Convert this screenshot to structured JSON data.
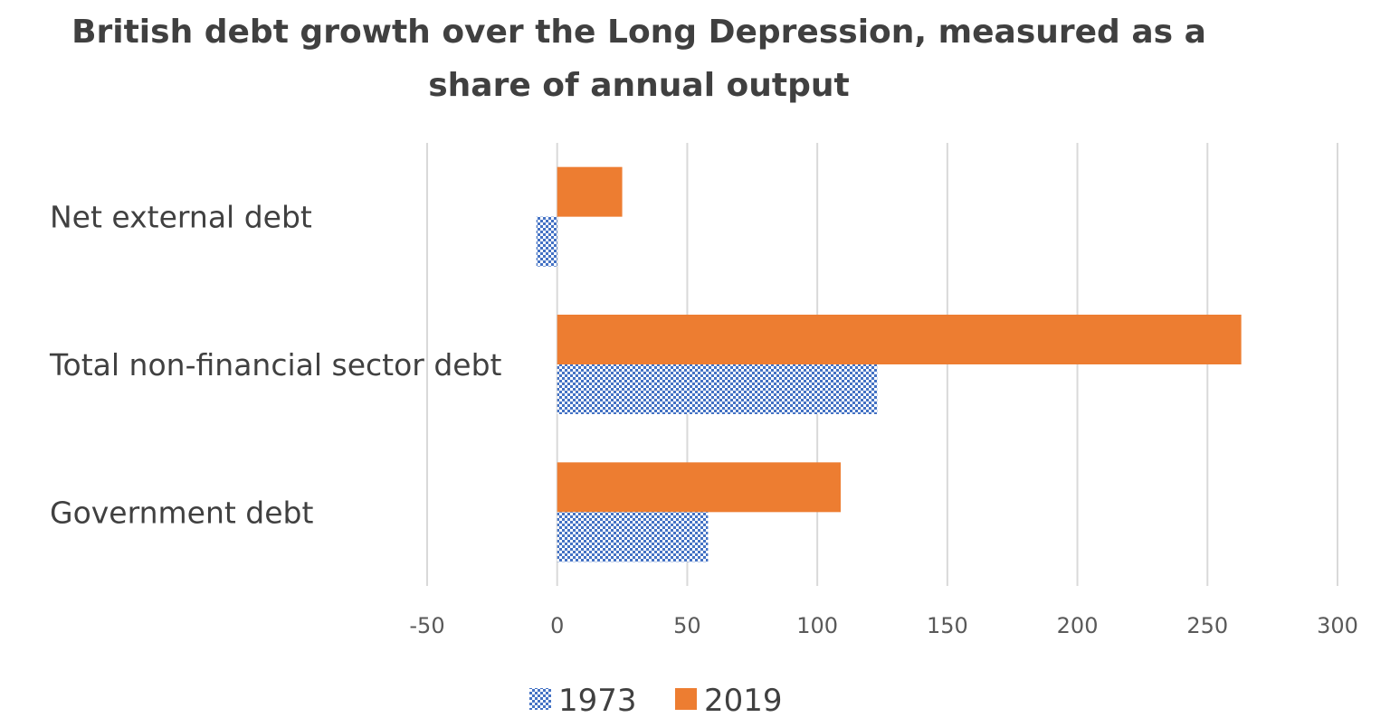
{
  "chart_data": {
    "type": "bar",
    "orientation": "horizontal",
    "title": "British debt growth over the Long Depression, measured as a share of annual output",
    "title_lines": [
      "British debt growth over the Long Depression, measured as a",
      "share of annual output"
    ],
    "categories": [
      "Net external debt",
      "Total non-financial sector debt",
      "Government debt"
    ],
    "series": [
      {
        "name": "1973",
        "values": [
          -8,
          123,
          58
        ],
        "color": "#4472C4",
        "pattern": "crosshatch"
      },
      {
        "name": "2019",
        "values": [
          25,
          263,
          109
        ],
        "color": "#ED7D31",
        "pattern": "solid"
      }
    ],
    "xlim": [
      -50,
      300
    ],
    "xticks": [
      -50,
      0,
      50,
      100,
      150,
      200,
      250,
      300
    ],
    "xlabel": "",
    "ylabel": "",
    "grid": true,
    "legend_position": "bottom"
  }
}
